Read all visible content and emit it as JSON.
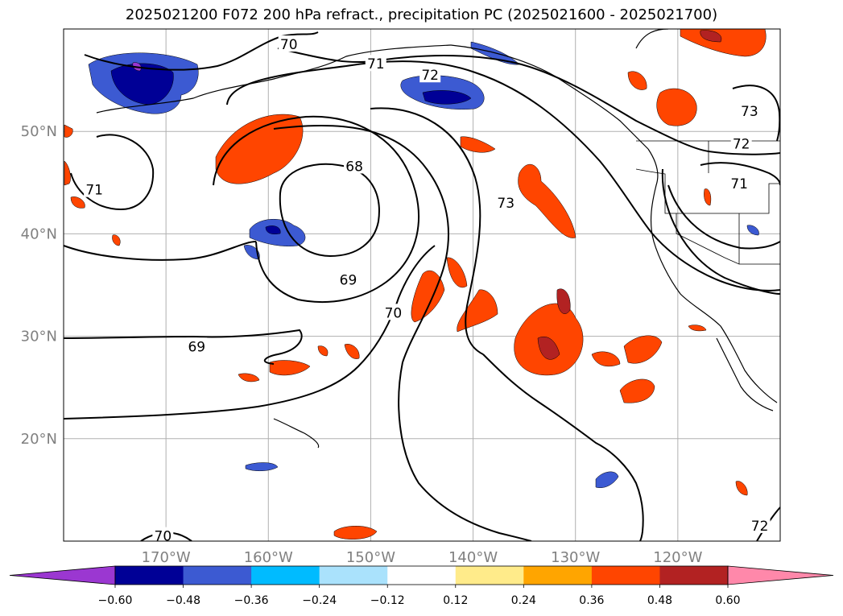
{
  "title": "2025021200 F072 200 hPa refract., precipitation PC (2025021600 - 2025021700)",
  "map": {
    "lon_range": [
      -180,
      -110
    ],
    "lat_range": [
      10,
      60
    ],
    "lat_ticks": [
      {
        "value": 50,
        "label": "50°N"
      },
      {
        "value": 40,
        "label": "40°N"
      },
      {
        "value": 30,
        "label": "30°N"
      },
      {
        "value": 20,
        "label": "20°N"
      }
    ],
    "lon_ticks": [
      {
        "value": -170,
        "label": "170°W"
      },
      {
        "value": -160,
        "label": "160°W"
      },
      {
        "value": -150,
        "label": "150°W"
      },
      {
        "value": -140,
        "label": "140°W"
      },
      {
        "value": -130,
        "label": "130°W"
      },
      {
        "value": -120,
        "label": "120°W"
      }
    ],
    "grid": true,
    "contour_labels": [
      {
        "text": "70",
        "lon": -158.0,
        "lat": 58.5
      },
      {
        "text": "71",
        "lon": -149.5,
        "lat": 56.6
      },
      {
        "text": "72",
        "lon": -144.2,
        "lat": 55.5
      },
      {
        "text": "71",
        "lon": -177.0,
        "lat": 44.3
      },
      {
        "text": "68",
        "lon": -151.6,
        "lat": 46.6
      },
      {
        "text": "73",
        "lon": -136.8,
        "lat": 43.0
      },
      {
        "text": "73",
        "lon": -113.0,
        "lat": 52.0
      },
      {
        "text": "72",
        "lon": -113.8,
        "lat": 48.8
      },
      {
        "text": "71",
        "lon": -114.0,
        "lat": 44.9
      },
      {
        "text": "69",
        "lon": -152.2,
        "lat": 35.5
      },
      {
        "text": "70",
        "lon": -147.8,
        "lat": 32.3
      },
      {
        "text": "69",
        "lon": -167.0,
        "lat": 29.0
      },
      {
        "text": "70",
        "lon": -170.3,
        "lat": 10.5
      },
      {
        "text": "72",
        "lon": -112.0,
        "lat": 11.5
      }
    ]
  },
  "colorbar": {
    "colors": [
      "#9b37d1",
      "#000096",
      "#3c5ad2",
      "#00bbff",
      "#aae2fc",
      "#ffffff",
      "#ffeb8a",
      "#ffa500",
      "#ff4500",
      "#b22222",
      "#ff88aa"
    ],
    "labels": [
      "−0.60",
      "−0.48",
      "−0.36",
      "−0.24",
      "−0.12",
      "0.12",
      "0.24",
      "0.36",
      "0.48",
      "0.60"
    ]
  }
}
